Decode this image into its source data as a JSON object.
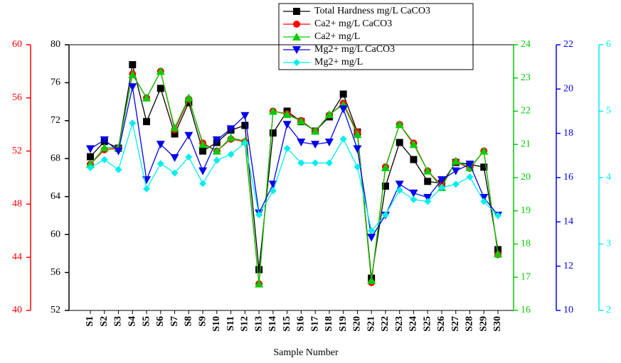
{
  "chart_data": {
    "type": "line",
    "x_label": "Sample Number",
    "categories": [
      "S1",
      "S2",
      "S3",
      "S4",
      "S5",
      "S6",
      "S7",
      "S8",
      "S9",
      "S10",
      "S11",
      "S12",
      "S13",
      "S14",
      "S15",
      "S16",
      "S17",
      "S18",
      "S19",
      "S20",
      "S21",
      "S22",
      "S23",
      "S24",
      "S25",
      "S26",
      "S27",
      "S28",
      "S29",
      "S30"
    ],
    "ylim": [
      52,
      80
    ],
    "yticks": [
      52,
      56,
      60,
      64,
      68,
      72,
      76,
      80
    ],
    "y2lim": [
      40,
      60
    ],
    "y2ticks": [
      40,
      44,
      48,
      52,
      56,
      60
    ],
    "y3lim": [
      16,
      24
    ],
    "y3ticks": [
      16,
      17,
      18,
      19,
      20,
      21,
      22,
      23,
      24
    ],
    "y4lim": [
      10,
      22
    ],
    "y4ticks": [
      10,
      12,
      14,
      16,
      18,
      20,
      22
    ],
    "y5lim": [
      2,
      6
    ],
    "y5ticks": [
      2,
      3,
      4,
      5,
      6
    ],
    "series": [
      {
        "name": "Total Hardness mg/L CaCO3",
        "color": "#000000",
        "marker": "square",
        "axis": "y",
        "values": [
          68.2,
          69.8,
          69.1,
          77.9,
          71.9,
          75.4,
          70.6,
          73.9,
          68.8,
          69.7,
          71.0,
          71.5,
          56.3,
          70.7,
          73.0,
          71.9,
          70.9,
          72.4,
          74.8,
          70.8,
          55.4,
          65.1,
          69.7,
          67.9,
          65.6,
          65.4,
          67.6,
          67.4,
          67.1,
          58.4
        ]
      },
      {
        "name": "Ca2+ mg/L CaCO3",
        "color": "#ff0000",
        "marker": "circle",
        "axis": "y2",
        "values": [
          51.0,
          52.1,
          52.2,
          57.8,
          56.0,
          58.0,
          53.6,
          55.9,
          52.6,
          52.0,
          52.9,
          52.7,
          42.0,
          55.0,
          54.8,
          54.3,
          53.5,
          54.7,
          55.6,
          53.4,
          42.1,
          50.8,
          54.0,
          52.6,
          50.5,
          49.4,
          51.2,
          50.7,
          52.0,
          44.2
        ]
      },
      {
        "name": "Ca2+ mg/L",
        "color": "#00cc00",
        "marker": "triangle-up",
        "axis": "y3",
        "values": [
          20.4,
          20.9,
          20.9,
          23.1,
          22.4,
          23.2,
          21.5,
          22.4,
          21.0,
          20.8,
          21.2,
          21.1,
          16.8,
          22.0,
          21.9,
          21.7,
          21.4,
          21.9,
          22.2,
          21.3,
          16.9,
          20.3,
          21.6,
          21.0,
          20.2,
          19.7,
          20.5,
          20.3,
          20.8,
          17.7
        ]
      },
      {
        "name": "Mg2+ mg/L CaCO3",
        "color": "#0000ee",
        "marker": "triangle-down",
        "axis": "y4",
        "values": [
          17.3,
          17.7,
          17.2,
          20.1,
          15.9,
          17.5,
          16.9,
          17.9,
          16.3,
          17.7,
          18.2,
          18.8,
          14.4,
          15.7,
          18.4,
          17.6,
          17.5,
          17.6,
          19.1,
          17.3,
          13.3,
          14.3,
          15.7,
          15.3,
          15.1,
          15.9,
          16.3,
          16.6,
          15.1,
          14.3
        ]
      },
      {
        "name": "Mg2+ mg/L",
        "color": "#00eeee",
        "marker": "diamond",
        "axis": "y5",
        "values": [
          4.15,
          4.27,
          4.12,
          4.82,
          3.83,
          4.21,
          4.07,
          4.31,
          3.91,
          4.26,
          4.35,
          4.52,
          3.44,
          3.8,
          4.44,
          4.22,
          4.22,
          4.22,
          4.58,
          4.16,
          3.2,
          3.44,
          3.81,
          3.67,
          3.64,
          3.85,
          3.9,
          4.01,
          3.64,
          3.43
        ]
      }
    ]
  }
}
